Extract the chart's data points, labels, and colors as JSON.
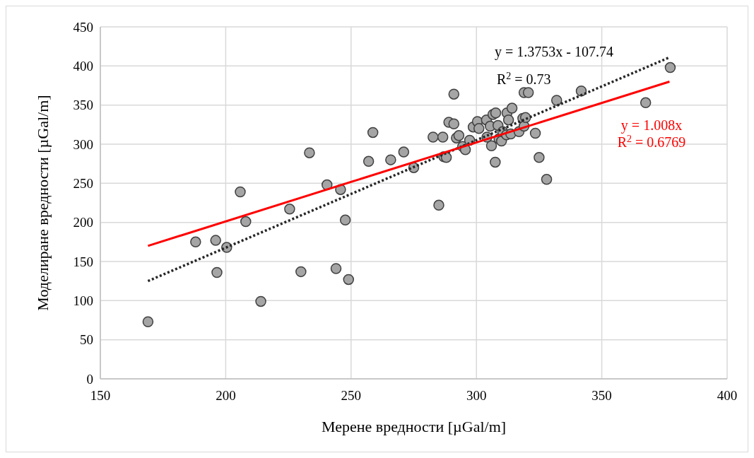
{
  "chart_data": {
    "type": "scatter",
    "xlabel": "Мерене вредности [µGal/m]",
    "ylabel": "Моделиране вредности [µGal/m]",
    "xlim": [
      150,
      400
    ],
    "xticks": [
      150,
      200,
      250,
      300,
      350,
      400
    ],
    "ylim": [
      0,
      450
    ],
    "yticks": [
      0,
      50,
      100,
      150,
      200,
      250,
      300,
      350,
      400,
      450
    ],
    "grid": true,
    "marker": "circle",
    "series": [
      {
        "color": "#a5a5a5",
        "x": [
          169,
          188,
          196,
          196.5,
          200.4,
          205.8,
          208,
          214,
          225.5,
          230,
          233.4,
          240.4,
          244,
          245.8,
          247.7,
          249,
          257,
          258.7,
          265.8,
          271,
          275,
          282.7,
          285,
          286.6,
          287,
          288,
          289,
          291,
          291,
          292,
          293,
          294.5,
          295.6,
          297.3,
          298.7,
          300.4,
          301,
          304,
          304.2,
          305.5,
          306,
          306.6,
          307.5,
          307.7,
          308.6,
          309,
          310,
          310.5,
          312,
          312.2,
          312.8,
          313.7,
          314.2,
          317,
          318.5,
          319,
          319,
          319.6,
          320.7,
          323.5,
          325,
          328,
          332,
          341.8,
          367.5,
          377.3
        ],
        "values": [
          73,
          175,
          177,
          136,
          168,
          239,
          201,
          99,
          217,
          137,
          289,
          248,
          141,
          242,
          203,
          127,
          278,
          315,
          280,
          290,
          270,
          309,
          222,
          309,
          284,
          283,
          328,
          364,
          326,
          308,
          311,
          297,
          293,
          305,
          322,
          329,
          320,
          331,
          309,
          323,
          298,
          338,
          277,
          340,
          324,
          307,
          304,
          316,
          312,
          340,
          331,
          313,
          346,
          316,
          333,
          323,
          366,
          334,
          366,
          314,
          283,
          255,
          356,
          368,
          353,
          398
        ]
      },
      {
        "type": "line",
        "color": "#262626",
        "line_style": "dotted",
        "marker": "none",
        "x": [
          169,
          377
        ],
        "values": [
          125,
          411
        ]
      },
      {
        "type": "line",
        "color": "#ff0000",
        "line_style": "solid",
        "marker": "none",
        "x": [
          169,
          377
        ],
        "values": [
          170,
          380
        ]
      }
    ],
    "annotations": [
      "y = 1.3753x - 107.74",
      "R$^{2}$ = 0.73",
      "y = 1.008x",
      "R$^{2}$ = 0.6769"
    ]
  }
}
